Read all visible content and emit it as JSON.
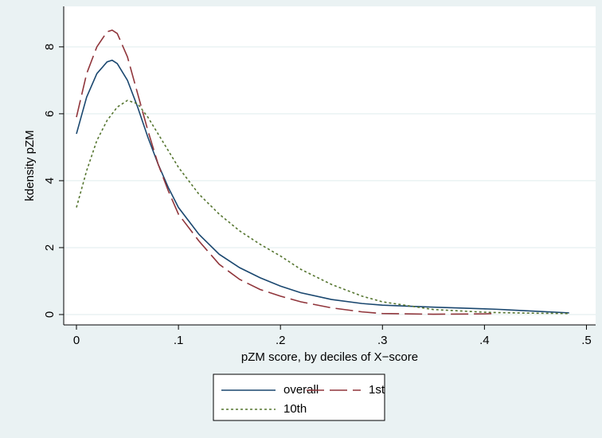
{
  "chart_data": {
    "type": "line",
    "x_label": "pZM score, by deciles of X−score",
    "y_label": "kdensity pZM",
    "x": [
      0,
      0.01,
      0.02,
      0.03,
      0.035,
      0.04,
      0.05,
      0.06,
      0.07,
      0.08,
      0.09,
      0.1,
      0.12,
      0.14,
      0.16,
      0.18,
      0.2,
      0.22,
      0.25,
      0.28,
      0.3,
      0.35,
      0.4,
      0.41,
      0.45,
      0.483
    ],
    "series": [
      {
        "name": "overall",
        "color": "#1a476f",
        "dash": "solid",
        "values": [
          5.4,
          6.5,
          7.2,
          7.55,
          7.6,
          7.5,
          7.0,
          6.2,
          5.3,
          4.5,
          3.8,
          3.2,
          2.4,
          1.8,
          1.4,
          1.1,
          0.85,
          0.65,
          0.45,
          0.33,
          0.28,
          0.22,
          0.17,
          0.16,
          0.1,
          0.05
        ]
      },
      {
        "name": "1st",
        "color": "#90353b",
        "dash": "long",
        "values": [
          5.9,
          7.2,
          8.0,
          8.45,
          8.5,
          8.4,
          7.7,
          6.6,
          5.5,
          4.5,
          3.7,
          3.0,
          2.2,
          1.5,
          1.05,
          0.75,
          0.55,
          0.38,
          0.2,
          0.08,
          0.03,
          0.01,
          0.02,
          0.03,
          null,
          null
        ]
      },
      {
        "name": "10th",
        "color": "#55752f",
        "dash": "dot",
        "values": [
          3.2,
          4.3,
          5.2,
          5.8,
          6.0,
          6.2,
          6.4,
          6.3,
          5.9,
          5.4,
          4.9,
          4.4,
          3.6,
          3.0,
          2.5,
          2.1,
          1.75,
          1.35,
          0.9,
          0.55,
          0.38,
          0.15,
          0.07,
          0.06,
          0.04,
          0.03
        ]
      }
    ],
    "xlim": [
      -0.0125,
      0.509
    ],
    "ylim": [
      -0.31,
      9.21
    ],
    "xticks": [
      0,
      {
        "value": 0.1,
        "label": ".1"
      },
      {
        "value": 0.2,
        "label": ".2"
      },
      {
        "value": 0.3,
        "label": ".3"
      },
      {
        "value": 0.4,
        "label": ".4"
      },
      {
        "value": 0.5,
        "label": ".5"
      }
    ],
    "yticks": [
      0,
      2,
      4,
      6,
      8
    ],
    "grid": true,
    "legend": "bottom"
  }
}
